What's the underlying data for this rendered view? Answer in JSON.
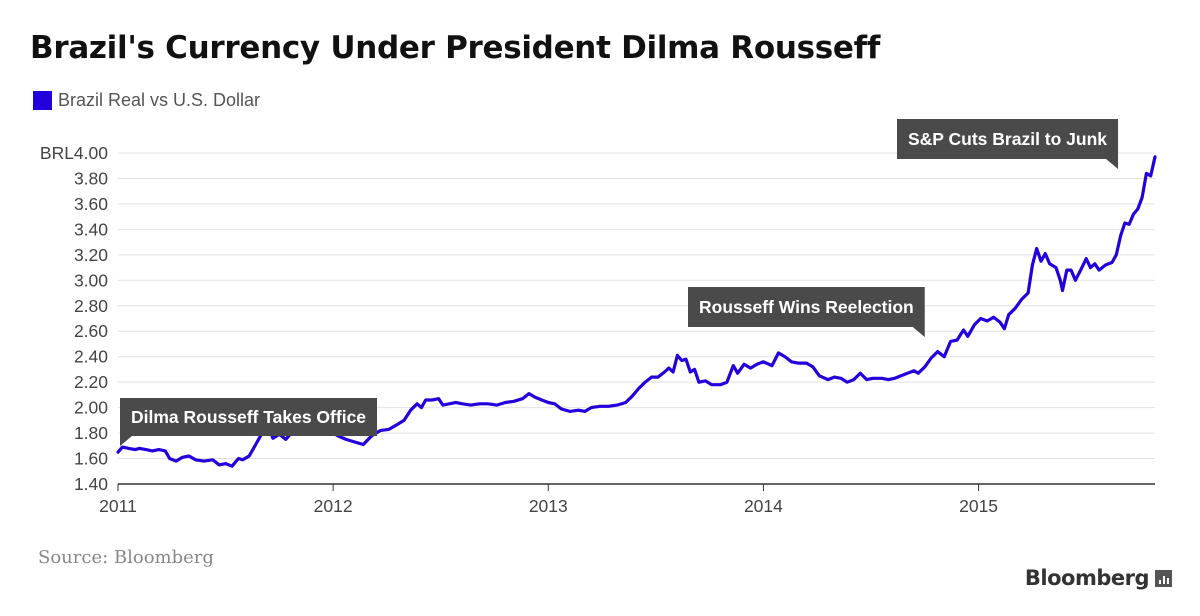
{
  "chart_data": {
    "type": "line",
    "title": "Brazil's Currency Under President Dilma Rousseff",
    "series": [
      {
        "name": "Brazil Real vs U.S. Dollar",
        "color": "#2200dd",
        "points": [
          [
            2011.0,
            1.65
          ],
          [
            2011.02,
            1.69
          ],
          [
            2011.05,
            1.68
          ],
          [
            2011.08,
            1.67
          ],
          [
            2011.1,
            1.68
          ],
          [
            2011.13,
            1.67
          ],
          [
            2011.16,
            1.66
          ],
          [
            2011.19,
            1.67
          ],
          [
            2011.22,
            1.66
          ],
          [
            2011.24,
            1.6
          ],
          [
            2011.27,
            1.58
          ],
          [
            2011.3,
            1.61
          ],
          [
            2011.33,
            1.62
          ],
          [
            2011.36,
            1.59
          ],
          [
            2011.4,
            1.58
          ],
          [
            2011.44,
            1.59
          ],
          [
            2011.47,
            1.55
          ],
          [
            2011.5,
            1.56
          ],
          [
            2011.53,
            1.54
          ],
          [
            2011.56,
            1.6
          ],
          [
            2011.58,
            1.59
          ],
          [
            2011.61,
            1.62
          ],
          [
            2011.64,
            1.71
          ],
          [
            2011.67,
            1.8
          ],
          [
            2011.7,
            1.86
          ],
          [
            2011.72,
            1.76
          ],
          [
            2011.75,
            1.79
          ],
          [
            2011.78,
            1.75
          ],
          [
            2011.8,
            1.79
          ],
          [
            2011.83,
            1.87
          ],
          [
            2011.86,
            1.81
          ],
          [
            2011.89,
            1.86
          ],
          [
            2011.92,
            1.88
          ],
          [
            2011.95,
            1.85
          ],
          [
            2011.98,
            1.83
          ],
          [
            2012.02,
            1.78
          ],
          [
            2012.06,
            1.75
          ],
          [
            2012.1,
            1.73
          ],
          [
            2012.14,
            1.71
          ],
          [
            2012.18,
            1.78
          ],
          [
            2012.22,
            1.82
          ],
          [
            2012.26,
            1.83
          ],
          [
            2012.3,
            1.87
          ],
          [
            2012.33,
            1.9
          ],
          [
            2012.36,
            1.98
          ],
          [
            2012.39,
            2.03
          ],
          [
            2012.41,
            2.0
          ],
          [
            2012.43,
            2.06
          ],
          [
            2012.46,
            2.06
          ],
          [
            2012.49,
            2.07
          ],
          [
            2012.51,
            2.02
          ],
          [
            2012.54,
            2.03
          ],
          [
            2012.57,
            2.04
          ],
          [
            2012.6,
            2.03
          ],
          [
            2012.64,
            2.02
          ],
          [
            2012.68,
            2.03
          ],
          [
            2012.72,
            2.03
          ],
          [
            2012.76,
            2.02
          ],
          [
            2012.8,
            2.04
          ],
          [
            2012.84,
            2.05
          ],
          [
            2012.88,
            2.07
          ],
          [
            2012.91,
            2.11
          ],
          [
            2012.94,
            2.08
          ],
          [
            2012.97,
            2.06
          ],
          [
            2013.0,
            2.04
          ],
          [
            2013.03,
            2.03
          ],
          [
            2013.06,
            1.99
          ],
          [
            2013.1,
            1.97
          ],
          [
            2013.14,
            1.98
          ],
          [
            2013.17,
            1.97
          ],
          [
            2013.2,
            2.0
          ],
          [
            2013.24,
            2.01
          ],
          [
            2013.28,
            2.01
          ],
          [
            2013.32,
            2.02
          ],
          [
            2013.36,
            2.04
          ],
          [
            2013.39,
            2.09
          ],
          [
            2013.42,
            2.15
          ],
          [
            2013.45,
            2.2
          ],
          [
            2013.48,
            2.24
          ],
          [
            2013.51,
            2.24
          ],
          [
            2013.54,
            2.28
          ],
          [
            2013.56,
            2.31
          ],
          [
            2013.58,
            2.28
          ],
          [
            2013.6,
            2.41
          ],
          [
            2013.62,
            2.37
          ],
          [
            2013.64,
            2.38
          ],
          [
            2013.66,
            2.28
          ],
          [
            2013.68,
            2.3
          ],
          [
            2013.7,
            2.2
          ],
          [
            2013.73,
            2.21
          ],
          [
            2013.76,
            2.18
          ],
          [
            2013.8,
            2.18
          ],
          [
            2013.83,
            2.2
          ],
          [
            2013.86,
            2.33
          ],
          [
            2013.88,
            2.27
          ],
          [
            2013.91,
            2.34
          ],
          [
            2013.94,
            2.31
          ],
          [
            2013.97,
            2.34
          ],
          [
            2014.0,
            2.36
          ],
          [
            2014.04,
            2.33
          ],
          [
            2014.07,
            2.43
          ],
          [
            2014.1,
            2.4
          ],
          [
            2014.13,
            2.36
          ],
          [
            2014.16,
            2.35
          ],
          [
            2014.2,
            2.35
          ],
          [
            2014.23,
            2.32
          ],
          [
            2014.26,
            2.25
          ],
          [
            2014.3,
            2.22
          ],
          [
            2014.33,
            2.24
          ],
          [
            2014.36,
            2.23
          ],
          [
            2014.39,
            2.2
          ],
          [
            2014.42,
            2.22
          ],
          [
            2014.45,
            2.27
          ],
          [
            2014.48,
            2.22
          ],
          [
            2014.51,
            2.23
          ],
          [
            2014.55,
            2.23
          ],
          [
            2014.58,
            2.22
          ],
          [
            2014.61,
            2.23
          ],
          [
            2014.64,
            2.25
          ],
          [
            2014.67,
            2.27
          ],
          [
            2014.7,
            2.29
          ],
          [
            2014.72,
            2.27
          ],
          [
            2014.75,
            2.32
          ],
          [
            2014.78,
            2.39
          ],
          [
            2014.81,
            2.44
          ],
          [
            2014.84,
            2.4
          ],
          [
            2014.87,
            2.52
          ],
          [
            2014.9,
            2.53
          ],
          [
            2014.93,
            2.61
          ],
          [
            2014.95,
            2.56
          ],
          [
            2014.98,
            2.65
          ],
          [
            2015.01,
            2.7
          ],
          [
            2015.04,
            2.68
          ],
          [
            2015.07,
            2.71
          ],
          [
            2015.1,
            2.67
          ],
          [
            2015.12,
            2.62
          ],
          [
            2015.14,
            2.73
          ],
          [
            2015.17,
            2.78
          ],
          [
            2015.2,
            2.85
          ],
          [
            2015.23,
            2.9
          ],
          [
            2015.25,
            3.12
          ],
          [
            2015.27,
            3.25
          ],
          [
            2015.29,
            3.15
          ],
          [
            2015.31,
            3.21
          ],
          [
            2015.33,
            3.13
          ],
          [
            2015.36,
            3.1
          ],
          [
            2015.38,
            3.0
          ],
          [
            2015.39,
            2.92
          ],
          [
            2015.41,
            3.08
          ],
          [
            2015.43,
            3.08
          ],
          [
            2015.45,
            3.0
          ],
          [
            2015.48,
            3.1
          ],
          [
            2015.5,
            3.17
          ],
          [
            2015.52,
            3.1
          ],
          [
            2015.54,
            3.13
          ],
          [
            2015.56,
            3.08
          ],
          [
            2015.59,
            3.12
          ],
          [
            2015.62,
            3.14
          ],
          [
            2015.64,
            3.2
          ],
          [
            2015.66,
            3.35
          ],
          [
            2015.68,
            3.45
          ],
          [
            2015.7,
            3.44
          ],
          [
            2015.72,
            3.52
          ],
          [
            2015.74,
            3.56
          ],
          [
            2015.76,
            3.65
          ],
          [
            2015.78,
            3.84
          ],
          [
            2015.8,
            3.82
          ],
          [
            2015.82,
            3.97
          ]
        ]
      }
    ],
    "xlim": [
      2011.0,
      2015.82
    ],
    "ylim": [
      1.4,
      4.0
    ],
    "x_ticks": [
      {
        "value": 2011,
        "label": "2011"
      },
      {
        "value": 2012,
        "label": "2012"
      },
      {
        "value": 2013,
        "label": "2013"
      },
      {
        "value": 2014,
        "label": "2014"
      },
      {
        "value": 2015,
        "label": "2015"
      }
    ],
    "y_ticks": [
      {
        "value": 1.4,
        "label": "1.40"
      },
      {
        "value": 1.6,
        "label": "1.60"
      },
      {
        "value": 1.8,
        "label": "1.80"
      },
      {
        "value": 2.0,
        "label": "2.00"
      },
      {
        "value": 2.2,
        "label": "2.20"
      },
      {
        "value": 2.4,
        "label": "2.40"
      },
      {
        "value": 2.6,
        "label": "2.60"
      },
      {
        "value": 2.8,
        "label": "2.80"
      },
      {
        "value": 3.0,
        "label": "3.00"
      },
      {
        "value": 3.2,
        "label": "3.20"
      },
      {
        "value": 3.4,
        "label": "3.40"
      },
      {
        "value": 3.6,
        "label": "3.60"
      },
      {
        "value": 3.8,
        "label": "3.80"
      },
      {
        "value": 4.0,
        "label": "BRL4.00"
      }
    ],
    "grid": true,
    "annotations": [
      {
        "name": "takes-office",
        "label": "Dilma Rousseff Takes Office",
        "x": 2011.0,
        "y": 1.65,
        "pointer": "bottom-left"
      },
      {
        "name": "wins-reelection",
        "label": "Rousseff Wins Reelection",
        "x": 2014.81,
        "y": 2.52,
        "pointer": "bottom-right"
      },
      {
        "name": "junk",
        "label": "S&P Cuts Brazil to Junk",
        "x": 2015.78,
        "y": 3.84,
        "pointer": "bottom-right"
      }
    ]
  },
  "legend": {
    "label": "Brazil Real vs U.S. Dollar",
    "color": "#2200dd"
  },
  "source": "Source: Bloomberg",
  "brand": "Bloomberg",
  "colors": {
    "grid": "#e2e2e2",
    "axis": "#333333",
    "annotation_bg": "#4a4a4a",
    "annotation_text": "#ffffff"
  }
}
